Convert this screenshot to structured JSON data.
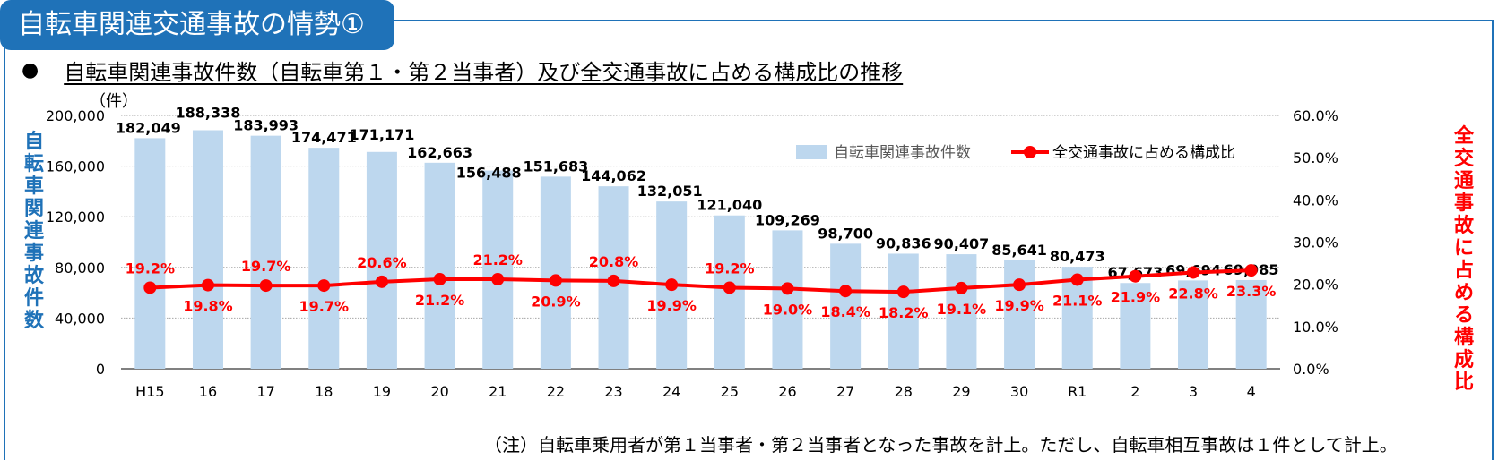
{
  "header": {
    "title": "自転車関連交通事故の情勢①",
    "bullet": "●",
    "subtitle": "自転車関連事故件数（自転車第１・第２当事者）及び全交通事故に占める構成比の推移"
  },
  "note": "（注）自転車乗用者が第１当事者・第２当事者となった事故を計上。ただし、自転車相互事故は１件として計上。",
  "colors": {
    "bar": "#bdd7ee",
    "line": "#ff0000",
    "accent": "#1f72b8",
    "grid": "#a6a6a6"
  },
  "chart_data": {
    "type": "bar",
    "categories": [
      "H15",
      "16",
      "17",
      "18",
      "19",
      "20",
      "21",
      "22",
      "23",
      "24",
      "25",
      "26",
      "27",
      "28",
      "29",
      "30",
      "R1",
      "2",
      "3",
      "4"
    ],
    "series": [
      {
        "name": "自転車関連事故件数",
        "type": "bar",
        "axis": "left",
        "values": [
          182049,
          188338,
          183993,
          174471,
          171171,
          162663,
          156488,
          151683,
          144062,
          132051,
          121040,
          109269,
          98700,
          90836,
          90407,
          85641,
          80473,
          67673,
          69694,
          69985
        ],
        "labels": [
          "182,049",
          "188,338",
          "183,993",
          "174,471",
          "171,171",
          "162,663",
          "156,488",
          "151,683",
          "144,062",
          "132,051",
          "121,040",
          "109,269",
          "98,700",
          "90,836",
          "90,407",
          "85,641",
          "80,473",
          "67,673",
          "69,694",
          "69,985"
        ]
      },
      {
        "name": "全交通事故に占める構成比",
        "type": "line",
        "axis": "right",
        "values": [
          19.2,
          19.8,
          19.7,
          19.7,
          20.6,
          21.2,
          21.2,
          20.9,
          20.8,
          19.9,
          19.2,
          19.0,
          18.4,
          18.2,
          19.1,
          19.9,
          21.1,
          21.9,
          22.8,
          23.3
        ],
        "labels": [
          "19.2%",
          "19.8%",
          "19.7%",
          "19.7%",
          "20.6%",
          "21.2%",
          "21.2%",
          "20.9%",
          "20.8%",
          "19.9%",
          "19.2%",
          "19.0%",
          "18.4%",
          "18.2%",
          "19.1%",
          "19.9%",
          "21.1%",
          "21.9%",
          "22.8%",
          "23.3%"
        ]
      }
    ],
    "y_left": {
      "unit": "（件）",
      "title": "自転車関連事故件数",
      "range": [
        0,
        200000
      ],
      "ticks": [
        0,
        40000,
        80000,
        120000,
        160000,
        200000
      ],
      "tick_labels": [
        "0",
        "40,000",
        "80,000",
        "120,000",
        "160,000",
        "200,000"
      ]
    },
    "y_right": {
      "title": "全交通事故に占める構成比",
      "range": [
        0,
        60
      ],
      "ticks": [
        0,
        10,
        20,
        30,
        40,
        50,
        60
      ],
      "tick_labels": [
        "0.0%",
        "10.0%",
        "20.0%",
        "30.0%",
        "40.0%",
        "50.0%",
        "60.0%"
      ]
    },
    "grid": true,
    "legend_position": "top-right"
  }
}
